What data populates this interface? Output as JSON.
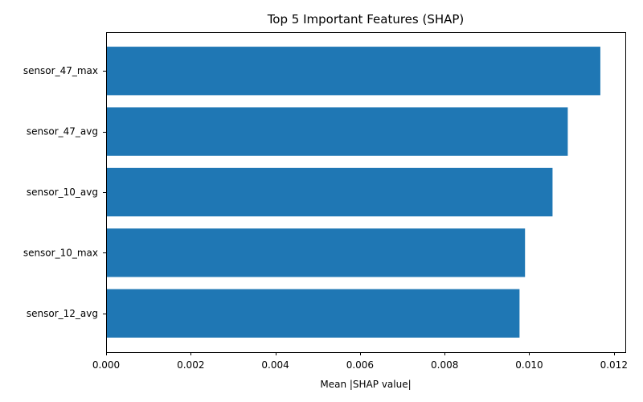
{
  "chart_data": {
    "type": "bar",
    "orientation": "horizontal",
    "title": "Top 5 Important Features (SHAP)",
    "xlabel": "Mean |SHAP value|",
    "ylabel": "",
    "categories": [
      "sensor_47_max",
      "sensor_47_avg",
      "sensor_10_avg",
      "sensor_10_max",
      "sensor_12_avg"
    ],
    "values": [
      0.01168,
      0.01091,
      0.01055,
      0.0099,
      0.00977
    ],
    "xlim": [
      0,
      0.01227
    ],
    "xticks": [
      0,
      0.002,
      0.004,
      0.006,
      0.008,
      0.01,
      0.012
    ],
    "xtick_labels": [
      "0.000",
      "0.002",
      "0.004",
      "0.006",
      "0.008",
      "0.010",
      "0.012"
    ],
    "bar_color": "#1f77b4",
    "grid": false,
    "legend": "none"
  }
}
